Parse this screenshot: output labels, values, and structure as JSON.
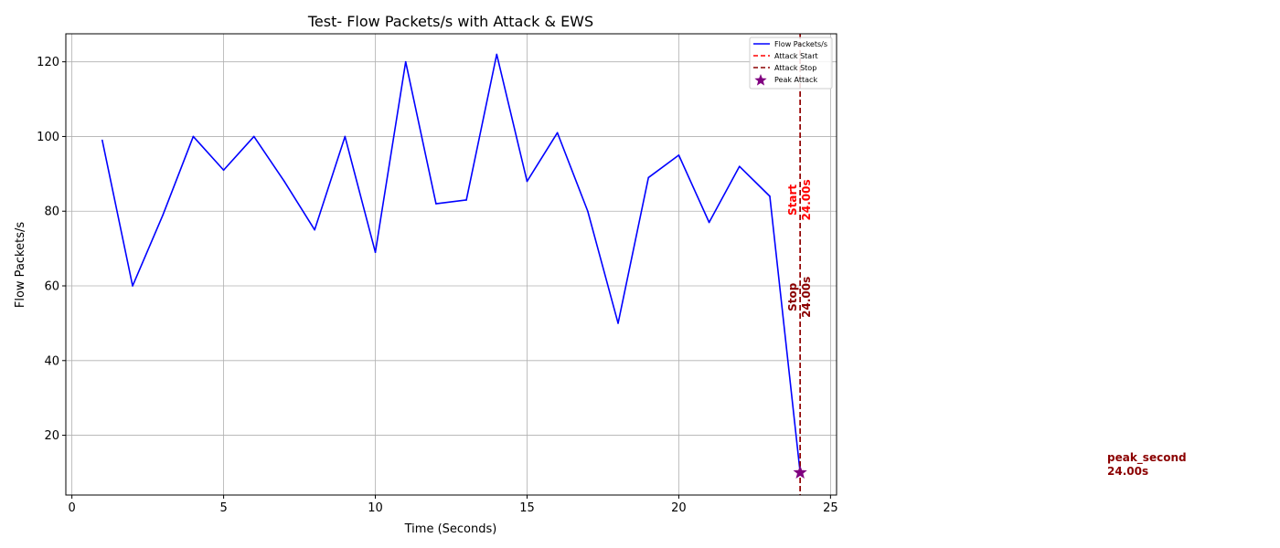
{
  "chart_data": {
    "type": "line",
    "title": "Test- Flow Packets/s with Attack & EWS",
    "xlabel": "Time (Seconds)",
    "ylabel": "Flow Packets/s",
    "xlim": [
      -0.2,
      25.2
    ],
    "ylim": [
      4,
      127.5
    ],
    "xticks": [
      0,
      5,
      10,
      15,
      20,
      25
    ],
    "yticks": [
      20,
      40,
      60,
      80,
      100,
      120
    ],
    "grid": true,
    "legend_position": "top-right",
    "series": [
      {
        "name": "Flow Packets/s",
        "color": "#0000ff",
        "x": [
          1,
          2,
          3,
          4,
          5,
          6,
          7,
          8,
          9,
          10,
          11,
          12,
          13,
          14,
          15,
          16,
          17,
          18,
          19,
          20,
          21,
          22,
          23,
          24
        ],
        "y": [
          99,
          60,
          79,
          100,
          91,
          100,
          88,
          75,
          100,
          69,
          120,
          82,
          83,
          122,
          88,
          101,
          80,
          50,
          89,
          95,
          77,
          92,
          84,
          10
        ]
      }
    ],
    "vlines": [
      {
        "name": "Attack Start",
        "x": 24.0,
        "color": "#ff0000",
        "label_line1": "Start",
        "label_line2": "24.00s",
        "label_y": 83
      },
      {
        "name": "Attack Stop",
        "x": 24.0,
        "color": "#8b0000",
        "label_line1": "Stop",
        "label_line2": "24.00s",
        "label_y": 57
      }
    ],
    "peak": {
      "name": "Peak Attack",
      "x": 24,
      "y": 10,
      "color": "#800080"
    },
    "side_note": {
      "line1": "peak_second",
      "line2": "24.00s",
      "color": "#8b0000"
    }
  }
}
